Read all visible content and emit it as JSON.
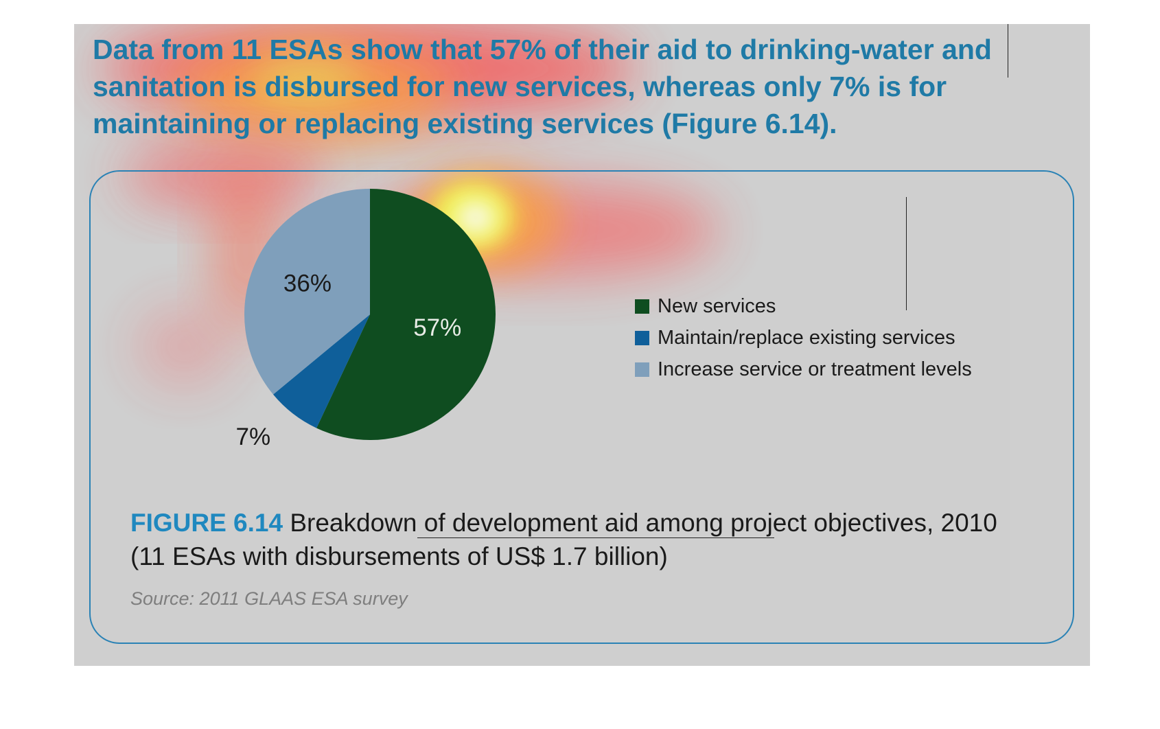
{
  "headline": "Data from 11 ESAs show that 57% of their aid to drinking-water and sanitation is disbursed for new services, whereas only 7% is for maintaining or replacing existing services (Figure 6.14).",
  "figure": {
    "label": "FIGURE 6.14",
    "caption": " Breakdown of development aid among project objectives, 2010 (11 ESAs with disbursements of US$ 1.7 billion)",
    "source": "Source: 2011 GLAAS ESA survey"
  },
  "colors": {
    "background": "#cfcfcf",
    "accent": "#1f7aa6",
    "border": "#2a82b5"
  },
  "chart_data": {
    "type": "pie",
    "categories": [
      "New services",
      "Maintain/replace existing services",
      "Increase service or treatment levels"
    ],
    "values": [
      57,
      7,
      36
    ],
    "data_labels": [
      "57%",
      "7%",
      "36%"
    ],
    "colors": [
      "#0f4d20",
      "#0f5f9a",
      "#7f9fbb"
    ],
    "legend_placement": "right"
  }
}
